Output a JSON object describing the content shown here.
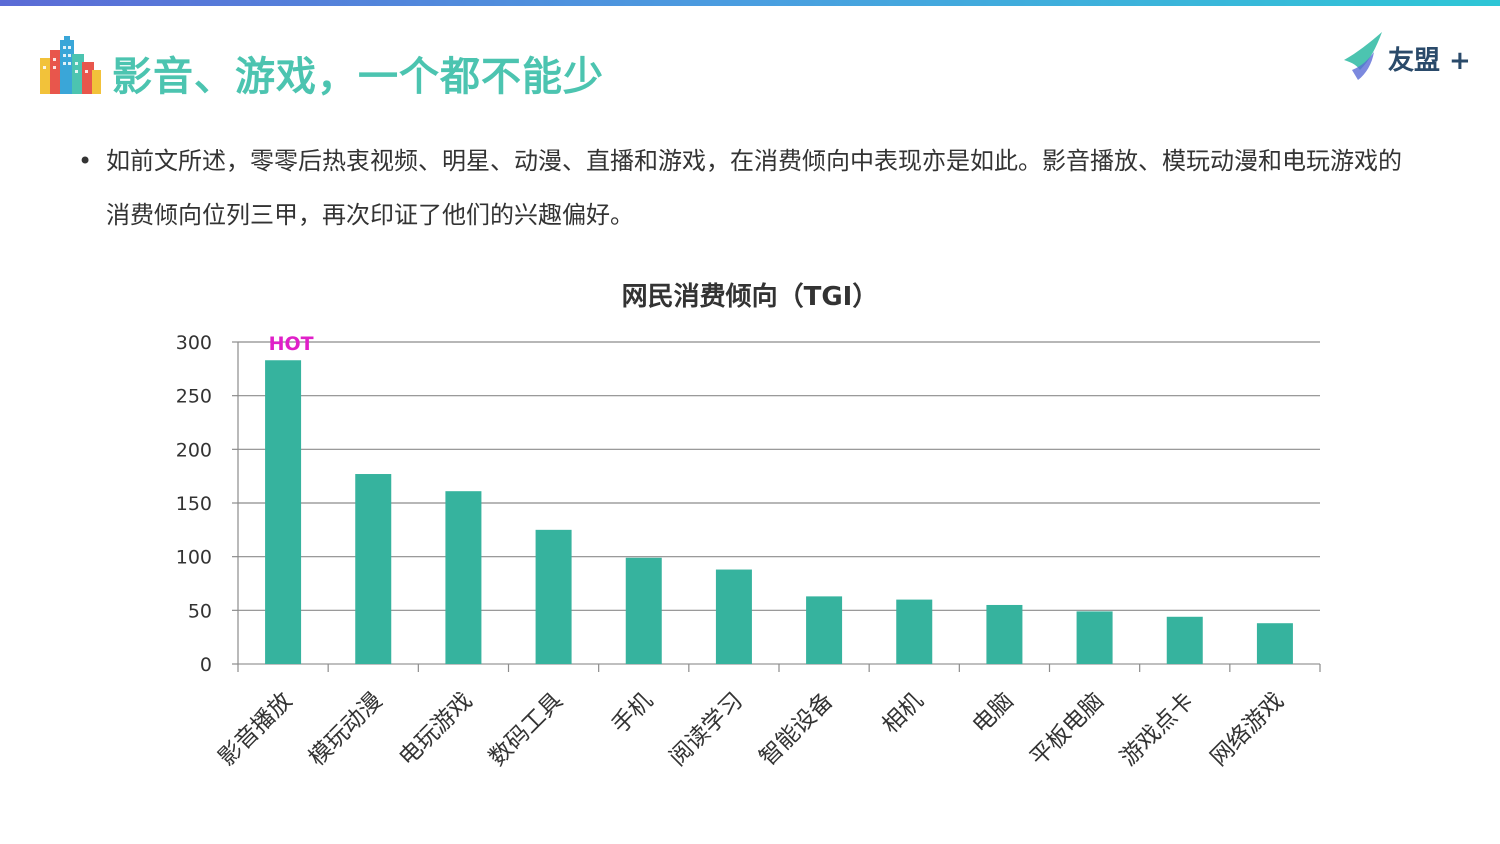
{
  "header": {
    "title": "影音、游戏，一个都不能少",
    "brand_name": "友盟 +",
    "accent_color": "#4cc4b0"
  },
  "body": {
    "bullet": "•",
    "paragraph": "如前文所述，零零后热衷视频、明星、动漫、直播和游戏，在消费倾向中表现亦是如此。影音播放、模玩动漫和电玩游戏的消费倾向位列三甲，再次印证了他们的兴趣偏好。"
  },
  "chart_data": {
    "type": "bar",
    "title": "网民消费倾向（TGI）",
    "categories": [
      "影音播放",
      "模玩动漫",
      "电玩游戏",
      "数码工具",
      "手机",
      "阅读学习",
      "智能设备",
      "相机",
      "电脑",
      "平板电脑",
      "游戏点卡",
      "网络游戏"
    ],
    "values": [
      283,
      177,
      161,
      125,
      99,
      88,
      63,
      60,
      55,
      49,
      44,
      38
    ],
    "ylim": [
      0,
      300
    ],
    "yticks": [
      0,
      50,
      100,
      150,
      200,
      250,
      300
    ],
    "grid": true,
    "bar_color": "#36b39e",
    "annotation": {
      "text": "HOT",
      "category": "影音播放",
      "color": "#e020c8"
    }
  }
}
